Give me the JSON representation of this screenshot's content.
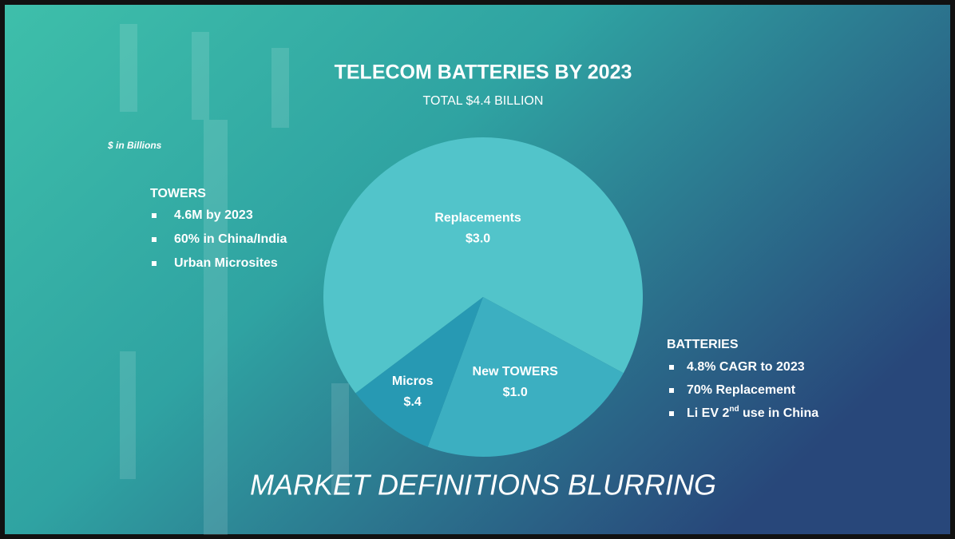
{
  "chart_data": {
    "type": "pie",
    "title": "TELECOM BATTERIES BY 2023",
    "subtitle": "TOTAL $4.4 BILLION",
    "unit_note": "$ in Billions",
    "categories": [
      "Replacements",
      "New TOWERS",
      "Micros"
    ],
    "values": [
      3.0,
      1.0,
      0.4
    ],
    "value_labels": [
      "$3.0",
      "$1.0",
      "$.4"
    ],
    "colors": [
      "#52c4ca",
      "#3cafc1",
      "#2799b3"
    ]
  },
  "towers": {
    "heading": "TOWERS",
    "bullets": [
      "4.6M by 2023",
      "60% in China/India",
      "Urban Microsites"
    ]
  },
  "batteries": {
    "heading": "BATTERIES",
    "bullets": [
      [
        "4.8% CAGR to 2023"
      ],
      [
        "70% Replacement"
      ],
      [
        "Li EV 2",
        "nd",
        " use in China"
      ]
    ]
  },
  "footer": "MARKET DEFINITIONS BLURRING"
}
